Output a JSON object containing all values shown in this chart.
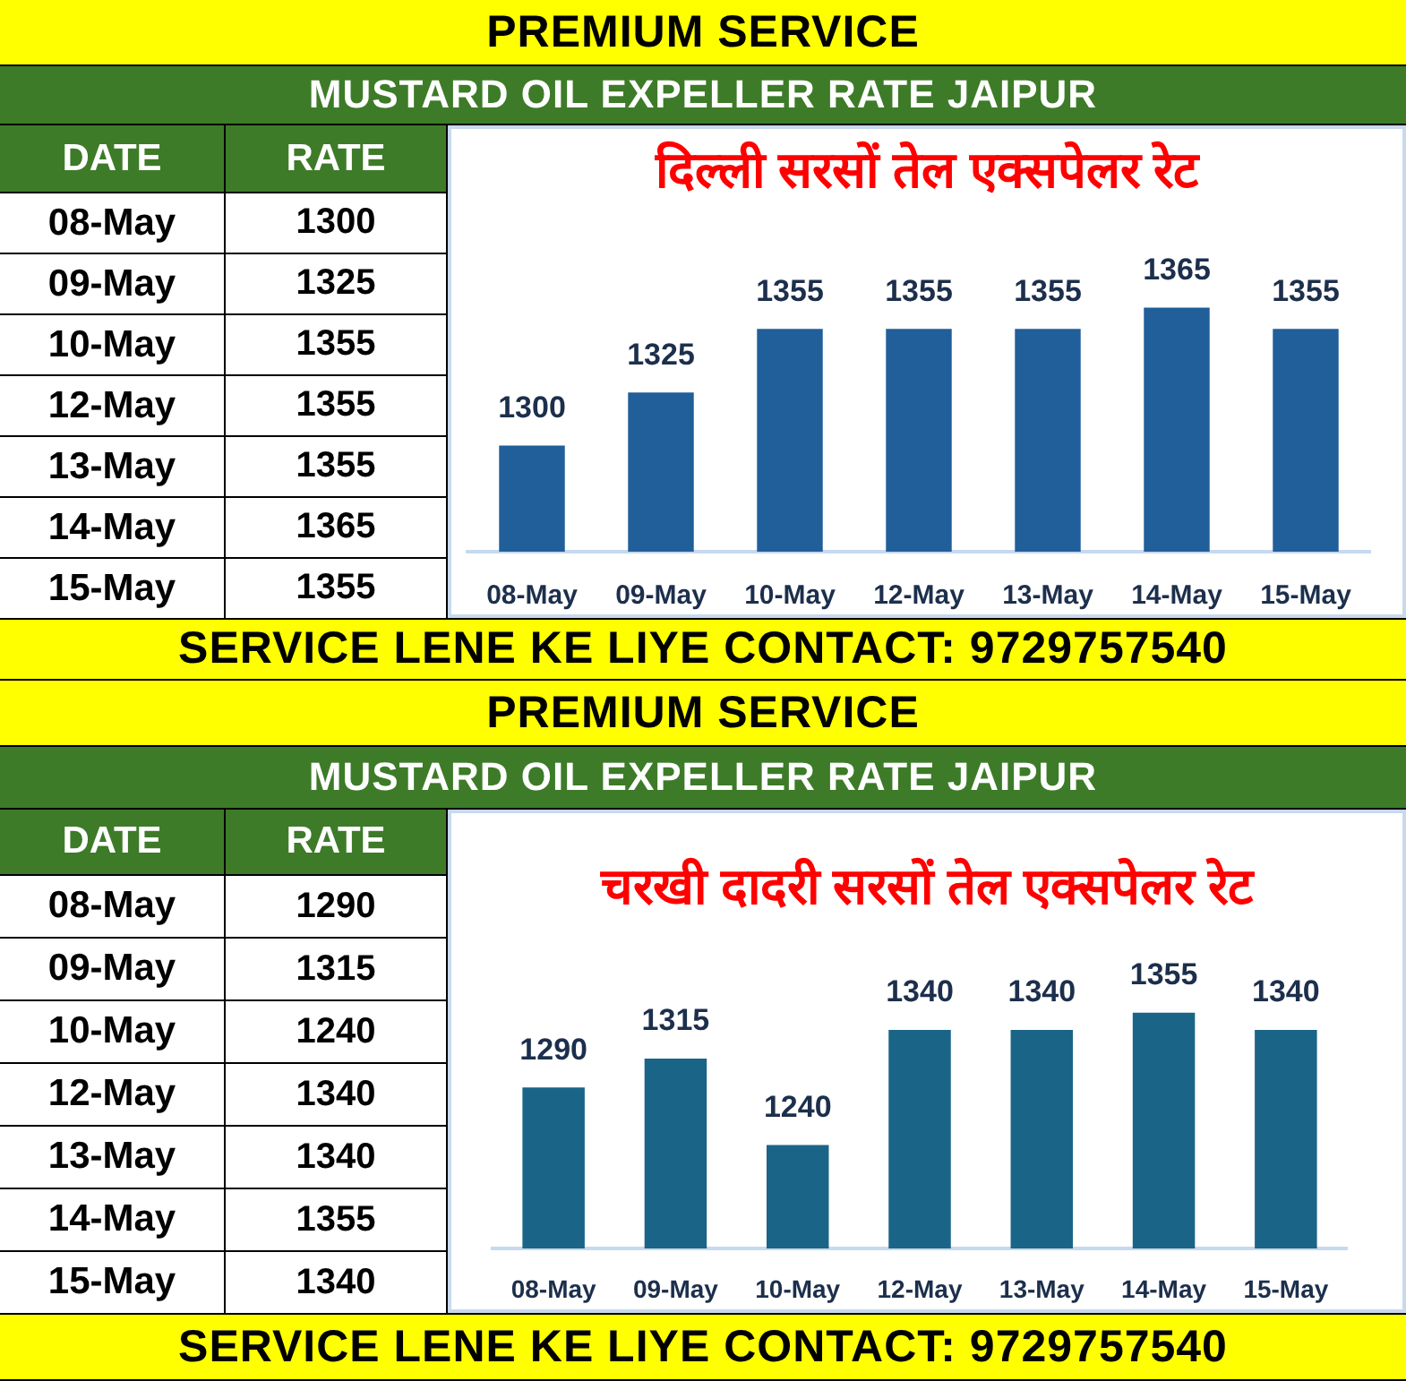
{
  "chart_data": [
    {
      "type": "other",
      "xlabel": "DATE",
      "ylabel": "RATE",
      "categories": [
        "08-May",
        "09-May",
        "10-May",
        "12-May",
        "13-May",
        "14-May",
        "15-May"
      ],
      "values": [
        1300,
        1325,
        1355,
        1355,
        1355,
        1365,
        1355
      ],
      "data_labels": true
    },
    {
      "type": "bar",
      "title": "दिल्ली सरसों तेल एक्सपेलर रेट",
      "subtitle": "MUSTARD OIL EXPELLER RATE JAIPUR",
      "annotations": [
        "PREMIUM SERVICE",
        "SERVICE LENE KE LIYE CONTACT: 9729757540"
      ],
      "categories": [
        "08-May",
        "09-May",
        "10-May",
        "12-May",
        "13-May",
        "14-May",
        "15-May"
      ],
      "values": [
        1300,
        1325,
        1355,
        1355,
        1355,
        1365,
        1355
      ],
      "color": "#215f9a",
      "ylim": [
        1250,
        1450
      ],
      "tick_labels": "x",
      "data_labels": true
    },
    {
      "type": "other",
      "xlabel": "DATE",
      "ylabel": "RATE",
      "categories": [
        "08-May",
        "09-May",
        "10-May",
        "12-May",
        "13-May",
        "14-May",
        "15-May"
      ],
      "values": [
        1290,
        1315,
        1240,
        1340,
        1340,
        1355,
        1340
      ],
      "data_labels": true
    },
    {
      "type": "bar",
      "title": "चरखी दादरी सरसों तेल एक्सपेलर रेट",
      "subtitle": "MUSTARD OIL EXPELLER RATE JAIPUR",
      "annotations": [
        "PREMIUM SERVICE",
        "SERVICE LENE KE LIYE CONTACT: 9729757540"
      ],
      "categories": [
        "08-May",
        "09-May",
        "10-May",
        "12-May",
        "13-May",
        "14-May",
        "15-May"
      ],
      "values": [
        1290,
        1315,
        1240,
        1340,
        1340,
        1355,
        1340
      ],
      "color": "#1a6587",
      "ylim": [
        1150,
        1530
      ],
      "tick_labels": "x",
      "data_labels": true
    }
  ]
}
